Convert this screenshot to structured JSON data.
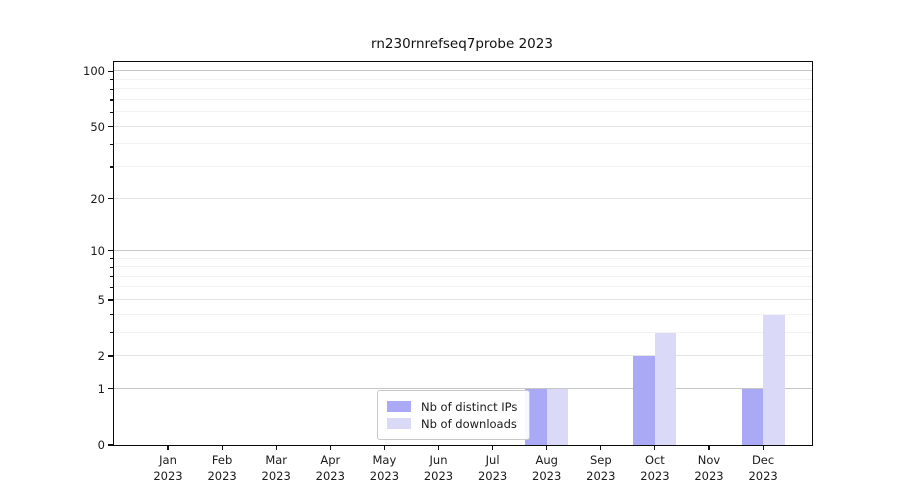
{
  "title": "rn230rnrefseq7probe 2023",
  "chart_data": {
    "type": "bar",
    "title": "rn230rnrefseq7probe 2023",
    "categories": [
      "Jan 2023",
      "Feb 2023",
      "Mar 2023",
      "Apr 2023",
      "May 2023",
      "Jun 2023",
      "Jul 2023",
      "Aug 2023",
      "Sep 2023",
      "Oct 2023",
      "Nov 2023",
      "Dec 2023"
    ],
    "series": [
      {
        "name": "Nb of distinct IPs",
        "color": "#a9a9f5",
        "values": [
          0,
          0,
          0,
          0,
          0,
          0,
          0,
          1,
          0,
          2,
          0,
          1
        ]
      },
      {
        "name": "Nb of downloads",
        "color": "#dadaf8",
        "values": [
          0,
          0,
          0,
          0,
          0,
          0,
          0,
          1,
          0,
          3,
          0,
          4
        ]
      }
    ],
    "xlabel": "",
    "ylabel": "",
    "y_axis": {
      "scale": "symlog (position ~ log10(1+y))",
      "ticks_labeled": [
        0,
        1,
        2,
        5,
        10,
        20,
        50,
        100
      ],
      "decade_ticks": [
        1,
        10,
        100
      ],
      "minor_ticks": [
        3,
        4,
        6,
        7,
        8,
        9,
        30,
        40,
        60,
        70,
        80,
        90
      ],
      "ylim": [
        0,
        112
      ]
    },
    "grid": "horizontal major + minor",
    "legend_position": "lower center (inside plot, over Aug bars)"
  },
  "legend": {
    "items": [
      {
        "label": "Nb of distinct IPs",
        "color": "#a9a9f5"
      },
      {
        "label": "Nb of downloads",
        "color": "#dadaf8"
      }
    ]
  }
}
